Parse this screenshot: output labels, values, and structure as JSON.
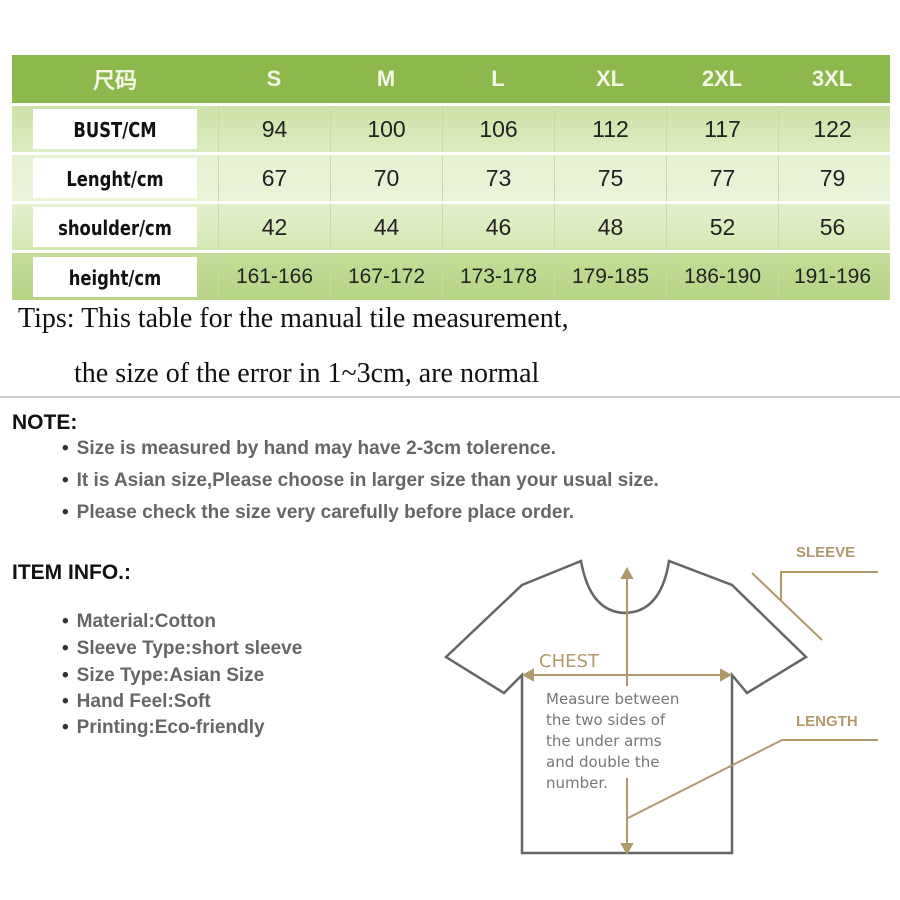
{
  "table": {
    "header": [
      "尺码",
      "S",
      "M",
      "L",
      "XL",
      "2XL",
      "3XL"
    ],
    "rows": [
      {
        "label": "BUST/CM",
        "values": [
          "94",
          "100",
          "106",
          "112",
          "117",
          "122"
        ]
      },
      {
        "label": "Lenght/cm",
        "values": [
          "67",
          "70",
          "73",
          "75",
          "77",
          "79"
        ]
      },
      {
        "label": "shoulder/cm",
        "values": [
          "42",
          "44",
          "46",
          "48",
          "52",
          "56"
        ]
      },
      {
        "label": "height/cm",
        "values": [
          "161-166",
          "167-172",
          "173-178",
          "179-185",
          "186-190",
          "191-196"
        ]
      }
    ],
    "header_color": "#8db84c"
  },
  "tips": {
    "line1": "Tips: This table for the manual tile measurement,",
    "line2": "the size of the error in 1~3cm, are normal"
  },
  "note": {
    "title": "NOTE:",
    "items": [
      "Size is measured by hand may have 2-3cm tolerence.",
      "It is Asian size,Please choose in larger size than your usual size.",
      "Please check the size very carefully before place order."
    ]
  },
  "item_info": {
    "title": "ITEM INFO.:",
    "items": [
      "Material:Cotton",
      "Sleeve Type:short sleeve",
      "Size Type:Asian Size",
      "Hand Feel:Soft",
      "Printing:Eco-friendly"
    ]
  },
  "diagram": {
    "sleeve": "SLEEVE",
    "chest": "CHEST",
    "length": "LENGTH",
    "measure": [
      "Measure between",
      "the two sides of",
      "the under arms",
      "and double the",
      "number."
    ],
    "accent_color": "#b09a6c"
  }
}
